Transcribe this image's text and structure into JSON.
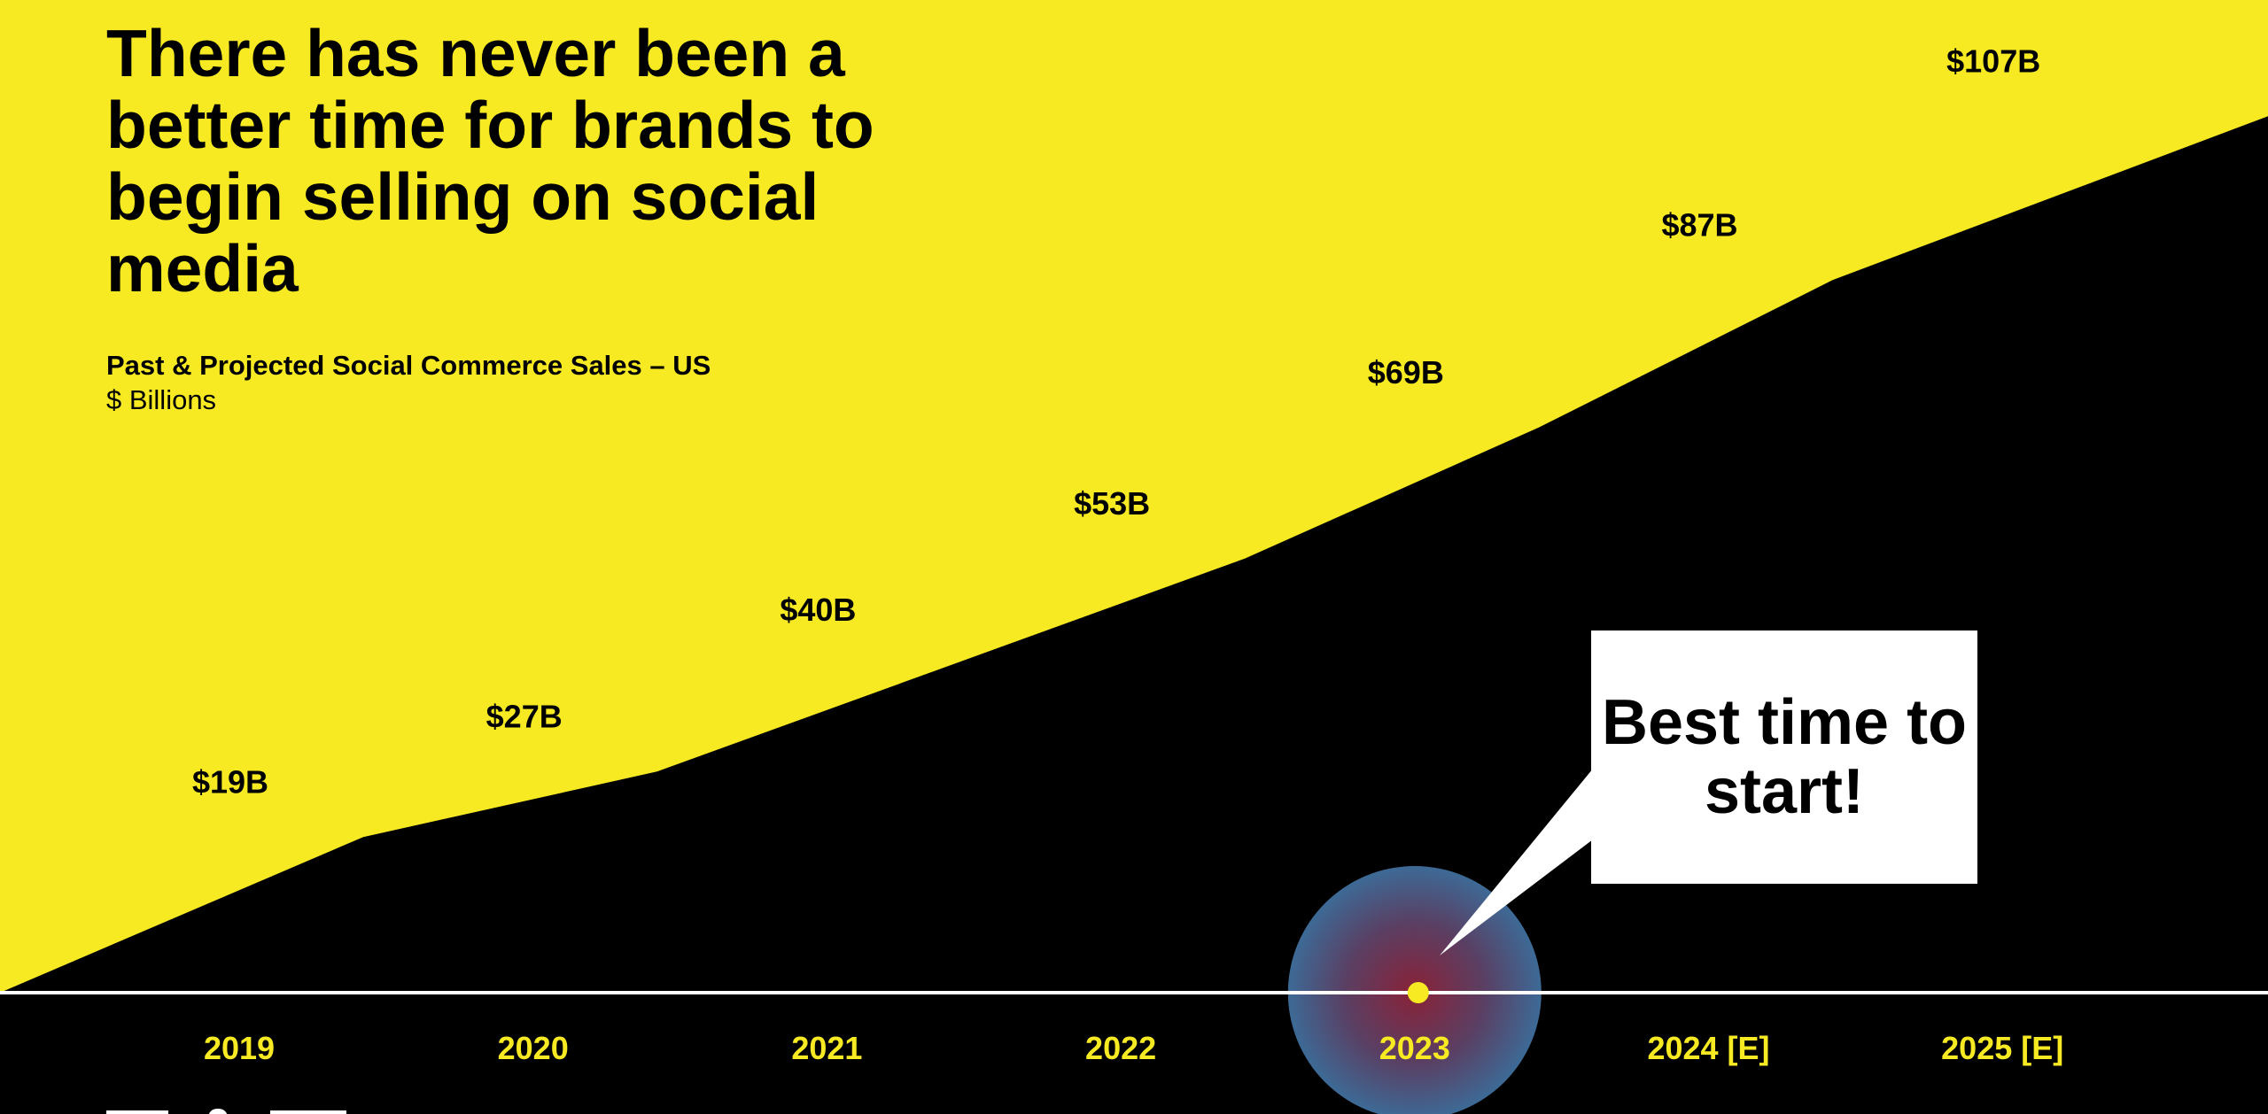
{
  "headline": "There has never been a better time for brands to begin selling on social media",
  "chart_data": {
    "type": "area",
    "title": "Past & Projected Social Commerce Sales – US",
    "subtitle": "$ Billions",
    "categories": [
      "2019",
      "2020",
      "2021",
      "2022",
      "2023",
      "2024 [E]",
      "2025 [E]"
    ],
    "series": [
      {
        "values": [
          19,
          27,
          40,
          53,
          69,
          87,
          107
        ],
        "labels": [
          "$19B",
          "$27B",
          "$40B",
          "$53B",
          "$69B",
          "$87B",
          "$107B"
        ]
      }
    ],
    "highlight_category": "2023",
    "callout": "Best time to start!",
    "grid": false,
    "legend": "none"
  },
  "colors": {
    "background": "#f7ea22",
    "area": "#000000",
    "axis_line": "#ffffff",
    "tick_label": "#f7ea22",
    "marker": "#f7ea22",
    "halo_outer": "#3d6a96",
    "halo_inner": "#7a2b3c",
    "callout_bg": "#ffffff"
  },
  "icons": {
    "highlight_marker": "pulse-circle-icon",
    "logos": "partner-logos"
  }
}
